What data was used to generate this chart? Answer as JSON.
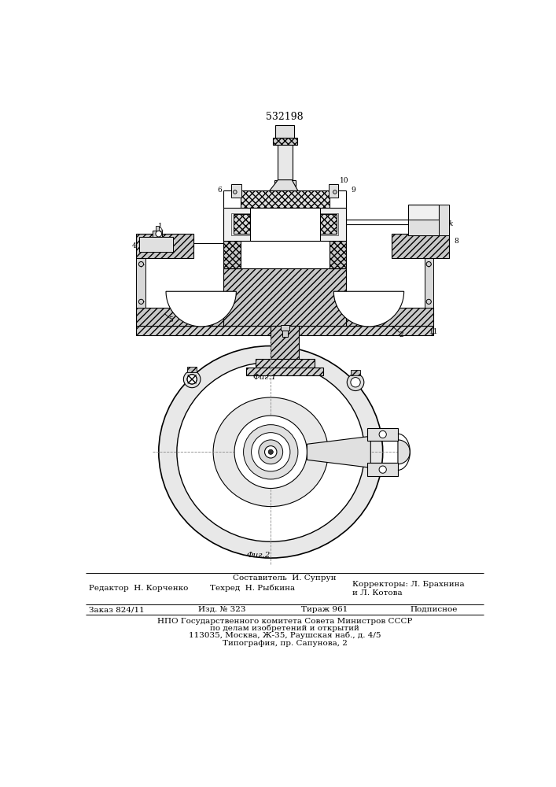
{
  "title_number": "532198",
  "fig1_caption": "Фиг.1",
  "fig2_caption": "Фиг.2",
  "editor_line": "Редактор  Н. Корченко",
  "composer_line": "Составитель  И. Супрун",
  "techred_line": "Техред  Н. Рыбкина",
  "correctors_label": "Корректоры:",
  "corrector1": "Л. Брахнина",
  "corrector2": "и Л. Котова",
  "order_line": "Заказ 824/11",
  "edition_line": "Изд. № 323",
  "circulation_line": "Тираж 961",
  "signed_line": "Подписное",
  "npo_line1": "НПО Государственного комитета Совета Министров СССР",
  "npo_line2": "по делам изобретений и открытий",
  "npo_line3": "113035, Москва, Ж-35, Раушская наб., д. 4/5",
  "typography_line": "Типография, пр. Сапунова, 2",
  "bg_color": "#ffffff"
}
